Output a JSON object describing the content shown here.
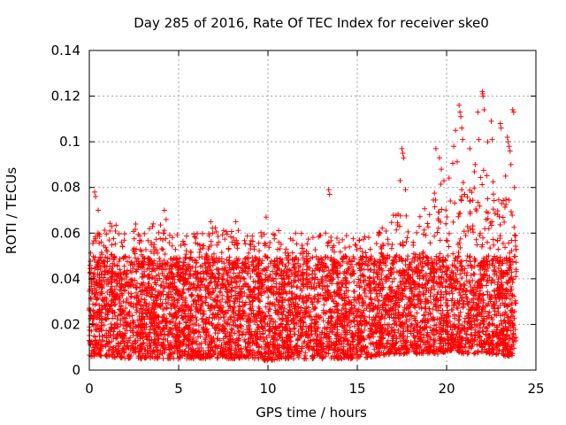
{
  "chart_data": {
    "type": "scatter",
    "title": "Day 285 of 2016, Rate Of TEC Index for receiver ske0",
    "xlabel": "GPS time / hours",
    "ylabel": "ROTI / TECUs",
    "xlim": [
      0,
      25
    ],
    "ylim": [
      0,
      0.14
    ],
    "xticks": [
      0,
      5,
      10,
      15,
      20,
      25
    ],
    "xtick_labels": [
      "0",
      "5",
      "10",
      "15",
      "20",
      "25"
    ],
    "yticks": [
      0,
      0.02,
      0.04,
      0.06,
      0.08,
      0.1,
      0.12,
      0.14
    ],
    "ytick_labels": [
      "0",
      "0.02",
      "0.04",
      "0.06",
      "0.08",
      "0.1",
      "0.12",
      "0.14"
    ],
    "grid": true,
    "marker": "plus",
    "color": "#ff0000",
    "series": [
      {
        "name": "ROTI ske0",
        "x_range": [
          0,
          23.9
        ],
        "dense_band": [
          0.005,
          0.05
        ],
        "envelope": {
          "x": [
            0,
            1,
            2,
            3,
            4,
            5,
            6,
            7,
            8,
            9,
            10,
            11,
            12,
            13,
            14,
            15,
            16,
            17,
            17.5,
            18,
            19,
            19.5,
            20,
            20.5,
            21,
            21.5,
            22,
            22.5,
            23,
            23.5,
            23.9
          ],
          "y_min": [
            0.006,
            0.006,
            0.005,
            0.005,
            0.005,
            0.005,
            0.005,
            0.005,
            0.005,
            0.005,
            0.004,
            0.005,
            0.005,
            0.005,
            0.005,
            0.005,
            0.006,
            0.007,
            0.007,
            0.007,
            0.007,
            0.007,
            0.008,
            0.008,
            0.007,
            0.007,
            0.008,
            0.007,
            0.006,
            0.006,
            0.006
          ],
          "y_max": [
            0.057,
            0.065,
            0.062,
            0.062,
            0.066,
            0.06,
            0.06,
            0.063,
            0.062,
            0.06,
            0.063,
            0.06,
            0.06,
            0.062,
            0.06,
            0.058,
            0.06,
            0.068,
            0.07,
            0.065,
            0.075,
            0.08,
            0.085,
            0.095,
            0.082,
            0.088,
            0.09,
            0.085,
            0.075,
            0.075,
            0.06
          ]
        },
        "outliers": [
          {
            "x": 0.3,
            "y": 0.078
          },
          {
            "x": 0.35,
            "y": 0.076
          },
          {
            "x": 0.5,
            "y": 0.07
          },
          {
            "x": 2.6,
            "y": 0.064
          },
          {
            "x": 4.2,
            "y": 0.07
          },
          {
            "x": 4.3,
            "y": 0.066
          },
          {
            "x": 6.8,
            "y": 0.065
          },
          {
            "x": 8.2,
            "y": 0.065
          },
          {
            "x": 9.9,
            "y": 0.067
          },
          {
            "x": 13.4,
            "y": 0.079
          },
          {
            "x": 13.45,
            "y": 0.077
          },
          {
            "x": 17.5,
            "y": 0.097
          },
          {
            "x": 17.55,
            "y": 0.095
          },
          {
            "x": 17.6,
            "y": 0.093
          },
          {
            "x": 17.4,
            "y": 0.083
          },
          {
            "x": 17.7,
            "y": 0.079
          },
          {
            "x": 19.4,
            "y": 0.097
          },
          {
            "x": 19.6,
            "y": 0.093
          },
          {
            "x": 19.7,
            "y": 0.088
          },
          {
            "x": 20.4,
            "y": 0.098
          },
          {
            "x": 20.5,
            "y": 0.105
          },
          {
            "x": 20.7,
            "y": 0.116
          },
          {
            "x": 20.75,
            "y": 0.113
          },
          {
            "x": 20.8,
            "y": 0.111
          },
          {
            "x": 20.85,
            "y": 0.106
          },
          {
            "x": 20.9,
            "y": 0.101
          },
          {
            "x": 21.3,
            "y": 0.097
          },
          {
            "x": 21.6,
            "y": 0.09
          },
          {
            "x": 21.75,
            "y": 0.113
          },
          {
            "x": 21.8,
            "y": 0.101
          },
          {
            "x": 22.0,
            "y": 0.122
          },
          {
            "x": 22.02,
            "y": 0.121
          },
          {
            "x": 22.04,
            "y": 0.12
          },
          {
            "x": 22.1,
            "y": 0.114
          },
          {
            "x": 22.3,
            "y": 0.1
          },
          {
            "x": 22.5,
            "y": 0.109
          },
          {
            "x": 22.55,
            "y": 0.101
          },
          {
            "x": 23.0,
            "y": 0.108
          },
          {
            "x": 23.05,
            "y": 0.106
          },
          {
            "x": 23.4,
            "y": 0.102
          },
          {
            "x": 23.45,
            "y": 0.1
          },
          {
            "x": 23.5,
            "y": 0.098
          },
          {
            "x": 23.55,
            "y": 0.096
          },
          {
            "x": 23.6,
            "y": 0.09
          },
          {
            "x": 23.7,
            "y": 0.114
          },
          {
            "x": 23.75,
            "y": 0.113
          },
          {
            "x": 23.3,
            "y": 0.085
          },
          {
            "x": 23.8,
            "y": 0.08
          }
        ]
      }
    ]
  }
}
